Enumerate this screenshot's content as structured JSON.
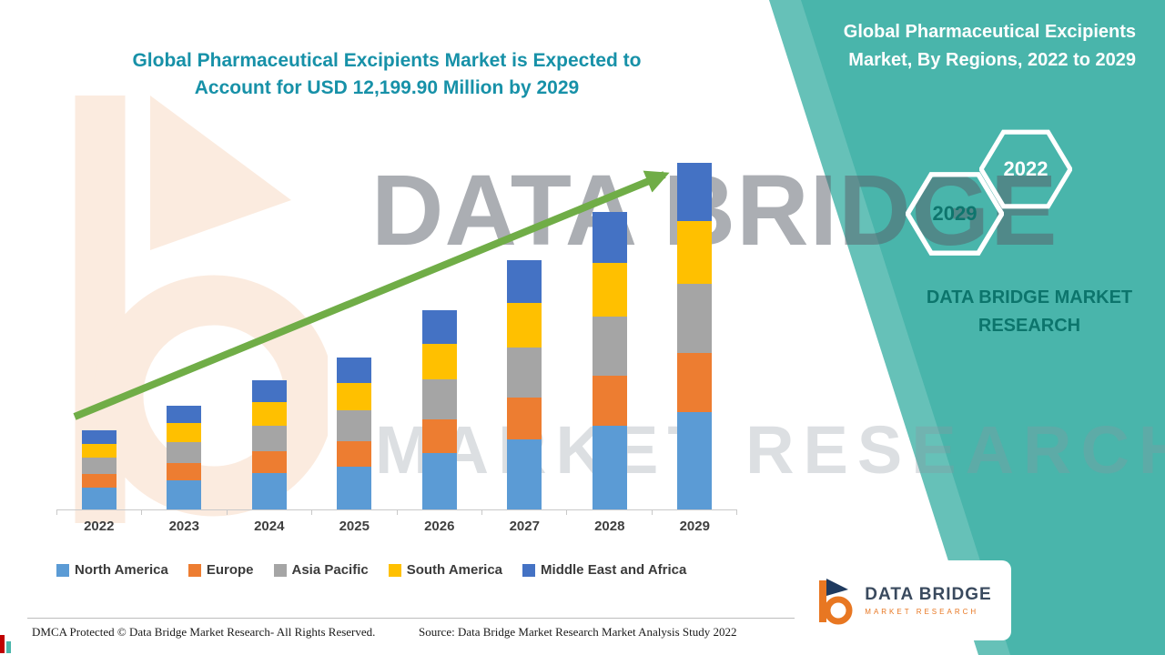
{
  "headline": {
    "line1": "Global Pharmaceutical Excipients Market is Expected to",
    "line2": "Account for USD 12,199.90 Million by 2029"
  },
  "right_panel": {
    "title": "Global Pharmaceutical Excipients Market, By Regions, 2022 to 2029",
    "hex_front_label": "2022",
    "hex_back_label": "2029",
    "brand_text": "DATA BRIDGE MARKET RESEARCH"
  },
  "watermark": {
    "line1": "DATA BRIDGE",
    "line2": "MARKET RESEARCH"
  },
  "logo_card": {
    "name": "DATA BRIDGE",
    "sub": "MARKET RESEARCH"
  },
  "footer": {
    "dmca": "DMCA Protected © Data Bridge Market Research- All Rights Reserved.",
    "source": "Source: Data Bridge Market Research Market Analysis Study 2022"
  },
  "chart_data": {
    "type": "bar",
    "stacked": true,
    "title": "Global Pharmaceutical Excipients Market, By Regions, 2022 to 2029",
    "unit": "USD Million",
    "categories": [
      "2022",
      "2023",
      "2024",
      "2025",
      "2026",
      "2027",
      "2028",
      "2029"
    ],
    "series": [
      {
        "name": "North America",
        "color": "#5b9bd5",
        "values": [
          780,
          1020,
          1270,
          1500,
          1970,
          2450,
          2930,
          3420
        ]
      },
      {
        "name": "Europe",
        "color": "#ed7d31",
        "values": [
          470,
          620,
          770,
          910,
          1190,
          1490,
          1780,
          2070
        ]
      },
      {
        "name": "Asia Pacific",
        "color": "#a5a5a5",
        "values": [
          560,
          730,
          910,
          1070,
          1400,
          1750,
          2090,
          2440
        ]
      },
      {
        "name": "South America",
        "color": "#ffc000",
        "values": [
          500,
          660,
          820,
          960,
          1260,
          1580,
          1880,
          2200
        ]
      },
      {
        "name": "Middle East and Africa",
        "color": "#4472c4",
        "values": [
          470,
          620,
          770,
          910,
          1190,
          1490,
          1780,
          2070
        ]
      }
    ],
    "totals": [
      2780,
      3650,
      4540,
      5350,
      7010,
      8760,
      10460,
      12200
    ],
    "ylim": [
      0,
      12800
    ],
    "grid": false,
    "legend_position": "bottom",
    "trend_arrow": true,
    "trend_arrow_color": "#70ad47",
    "xlabel": "",
    "ylabel": ""
  }
}
